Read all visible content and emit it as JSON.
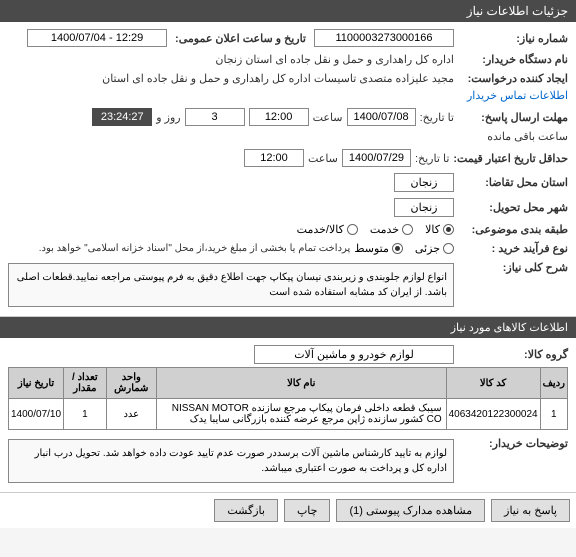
{
  "header": {
    "title": "جزئیات اطلاعات نیاز"
  },
  "fields": {
    "need_number": {
      "label": "شماره نیاز:",
      "value": "1100003273000166"
    },
    "announce_datetime": {
      "label": "تاریخ و ساعت اعلان عمومی:",
      "date": "1400/07/04",
      "time": "12:29",
      "separator": " - "
    },
    "buyer_org": {
      "label": "نام دستگاه خریدار:",
      "value": "اداره کل راهداری و حمل و نقل جاده ای استان زنجان"
    },
    "creator": {
      "label": "ایجاد کننده درخواست:",
      "value": "مجید علیزاده متصدی تاسیسات اداره کل راهداری و حمل و نقل جاده ای استان",
      "link": "اطلاعات تماس خریدار"
    },
    "deadline": {
      "label": "مهلت ارسال پاسخ:",
      "prefix": "تا تاریخ:",
      "date": "1400/07/08",
      "hour_label": "ساعت",
      "hour": "12:00",
      "day_label": "روز و",
      "days": "3",
      "remaining_label": "ساعت باقی مانده",
      "remaining": "23:24:27"
    },
    "validity": {
      "label": "حداقل تاریخ اعتبار قیمت:",
      "prefix": "تا تاریخ:",
      "date": "1400/07/29",
      "hour_label": "ساعت",
      "hour": "12:00"
    },
    "request_state": {
      "label": "استان محل تقاضا:",
      "value": "زنجان"
    },
    "delivery_city": {
      "label": "شهر محل تحویل:",
      "value": "زنجان"
    },
    "subject_category": {
      "label": "طبقه بندی موضوعی:",
      "options": [
        {
          "label": "کالا",
          "checked": true
        },
        {
          "label": "خدمت",
          "checked": false
        },
        {
          "label": "کالا/خدمت",
          "checked": false
        }
      ]
    },
    "process_type": {
      "label": "نوع فرآیند خرید :",
      "options": [
        {
          "label": "جزئی",
          "checked": false
        },
        {
          "label": "متوسط",
          "checked": true
        }
      ],
      "note": "پرداخت تمام یا بخشی از مبلغ خرید،از محل \"اسناد خزانه اسلامی\" خواهد بود."
    },
    "need_desc": {
      "label": "شرح کلی نیاز:",
      "text": "انواع لوازم جلوبندی و زیربندی نیسان پیکاپ جهت اطلاع دقیق به فرم پیوستی مراجعه نمایید.قطعات اصلی باشد. از ایران کد مشابه استفاده شده است"
    }
  },
  "goods_section": {
    "title": "اطلاعات کالاهای مورد نیاز",
    "group_label": "گروه کالا:",
    "group_value": "لوازم خودرو و ماشین آلات"
  },
  "table": {
    "columns": [
      "ردیف",
      "کد کالا",
      "نام کالا",
      "واحد شمارش",
      "تعداد / مقدار",
      "تاریخ نیاز"
    ],
    "rows": [
      {
        "idx": "1",
        "code": "4063420122300024",
        "name": "سیبک قطعه داخلی فرمان پیکاپ مرجع سازنده NISSAN MOTOR CO کشور سازنده ژاپن مرجع عرضه کننده بازرگانی سایبا یدک",
        "unit": "عدد",
        "qty": "1",
        "date": "1400/07/10"
      }
    ]
  },
  "buyer_notes": {
    "label": "توضیحات خریدار:",
    "text": "لوازم به تایید کارشناس ماشین آلات برسددر صورت عدم تایید عودت داده خواهد شد. تحویل درب انبار اداره کل و پرداخت به صورت اعتباری میباشد."
  },
  "footer": {
    "buttons": [
      {
        "name": "respond-button",
        "label": "پاسخ به نیاز"
      },
      {
        "name": "attachments-button",
        "label": "مشاهده مدارک پیوستی (1)"
      },
      {
        "name": "print-button",
        "label": "چاپ"
      },
      {
        "name": "back-button",
        "label": "بازگشت"
      }
    ]
  },
  "colors": {
    "header_bg": "#4a4a4a",
    "header_fg": "#ffffff",
    "border": "#888888",
    "link": "#0066cc",
    "th_bg": "#d0d0d0"
  }
}
